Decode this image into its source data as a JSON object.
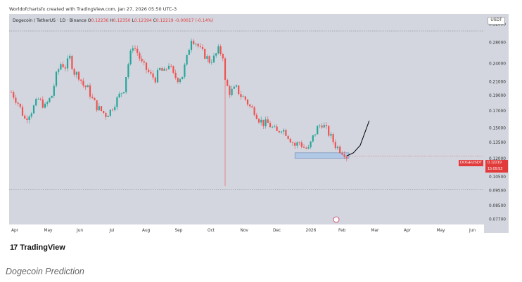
{
  "header": {
    "credit": "Worldofchartsfx created with TradingView.com, Jan 27, 2026 05:50 UTC-3",
    "symbol": "Dogecoin / TetherUS · 1D · Binance",
    "ohlc_o_label": "O",
    "ohlc_o": "0.12236",
    "ohlc_h_label": "H",
    "ohlc_h": "0.12350",
    "ohlc_l_label": "L",
    "ohlc_l": "0.12194",
    "ohlc_c_label": "C",
    "ohlc_c": "0.12219",
    "change": "-0.00017 (-0.14%)"
  },
  "currency_button": "USDT",
  "price_tag": {
    "symbol": "DOGEUSDT",
    "last": "0.12219",
    "countdown": "15:09:52"
  },
  "brand": {
    "name": "TradingView",
    "mark": "17"
  },
  "caption": "Dogecoin Prediction",
  "colors": {
    "up": "#26a69a",
    "down": "#ef5350",
    "background": "#d3d6df",
    "zone": "#a9c6e8",
    "projection": "#000000"
  },
  "chart_data": {
    "type": "candlestick",
    "title": "Dogecoin / TetherUS · 1D · Binance",
    "y_scale": "log",
    "y_ticks": [
      "0.32000",
      "0.28000",
      "0.24000",
      "0.21000",
      "0.19000",
      "0.17000",
      "0.15000",
      "0.13500",
      "0.12000",
      "0.10500",
      "0.09500",
      "0.08500",
      "0.07700"
    ],
    "ylim": [
      0.074,
      0.345
    ],
    "x_ticks": [
      "Apr",
      "May",
      "Jun",
      "Jul",
      "Aug",
      "Sep",
      "Oct",
      "Nov",
      "Dec",
      "2026",
      "Feb",
      "Mar",
      "Apr",
      "May",
      "Jun"
    ],
    "price_path": [
      [
        0,
        0.195
      ],
      [
        3,
        0.18
      ],
      [
        6,
        0.16
      ],
      [
        9,
        0.17
      ],
      [
        12,
        0.185
      ],
      [
        15,
        0.175
      ],
      [
        18,
        0.19
      ],
      [
        20,
        0.22
      ],
      [
        22,
        0.24
      ],
      [
        24,
        0.235
      ],
      [
        26,
        0.25
      ],
      [
        28,
        0.225
      ],
      [
        30,
        0.22
      ],
      [
        32,
        0.205
      ],
      [
        34,
        0.2
      ],
      [
        36,
        0.185
      ],
      [
        38,
        0.175
      ],
      [
        40,
        0.17
      ],
      [
        42,
        0.165
      ],
      [
        44,
        0.17
      ],
      [
        46,
        0.18
      ],
      [
        48,
        0.19
      ],
      [
        50,
        0.2
      ],
      [
        52,
        0.24
      ],
      [
        54,
        0.275
      ],
      [
        56,
        0.26
      ],
      [
        58,
        0.24
      ],
      [
        60,
        0.23
      ],
      [
        62,
        0.22
      ],
      [
        64,
        0.215
      ],
      [
        66,
        0.23
      ],
      [
        68,
        0.225
      ],
      [
        70,
        0.24
      ],
      [
        72,
        0.22
      ],
      [
        74,
        0.215
      ],
      [
        76,
        0.22
      ],
      [
        78,
        0.25
      ],
      [
        80,
        0.29
      ],
      [
        82,
        0.28
      ],
      [
        84,
        0.265
      ],
      [
        86,
        0.255
      ],
      [
        88,
        0.245
      ],
      [
        90,
        0.25
      ],
      [
        92,
        0.265
      ],
      [
        94,
        0.255
      ],
      [
        95,
        0.21
      ],
      [
        97,
        0.195
      ],
      [
        100,
        0.2
      ],
      [
        102,
        0.19
      ],
      [
        104,
        0.185
      ],
      [
        106,
        0.175
      ],
      [
        108,
        0.17
      ],
      [
        110,
        0.16
      ],
      [
        112,
        0.155
      ],
      [
        114,
        0.155
      ],
      [
        116,
        0.15
      ],
      [
        118,
        0.145
      ],
      [
        120,
        0.15
      ],
      [
        122,
        0.145
      ],
      [
        124,
        0.138
      ],
      [
        126,
        0.132
      ],
      [
        128,
        0.135
      ],
      [
        130,
        0.13
      ],
      [
        132,
        0.128
      ],
      [
        134,
        0.14
      ],
      [
        136,
        0.15
      ],
      [
        138,
        0.155
      ],
      [
        140,
        0.148
      ],
      [
        142,
        0.14
      ],
      [
        144,
        0.132
      ],
      [
        146,
        0.128
      ],
      [
        148,
        0.125
      ],
      [
        149,
        0.1222
      ]
    ],
    "wick_low": {
      "x": 95,
      "value": 0.098
    },
    "range_low": 0.0955,
    "range_high": 0.305,
    "support_zone": [
      0.12,
      0.125
    ],
    "projection": [
      [
        149,
        0.1222
      ],
      [
        152,
        0.125
      ],
      [
        155,
        0.132
      ],
      [
        159,
        0.158
      ]
    ],
    "last_price": 0.12219
  }
}
